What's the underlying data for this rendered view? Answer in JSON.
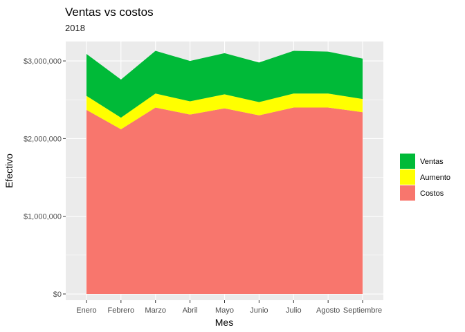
{
  "chart_data": {
    "type": "area",
    "stacked": true,
    "title": "Ventas vs costos",
    "subtitle": "2018",
    "xlabel": "Mes",
    "ylabel": "Efectivo",
    "categories": [
      "Enero",
      "Febrero",
      "Marzo",
      "Abril",
      "Mayo",
      "Junio",
      "Julio",
      "Agosto",
      "Septiembre"
    ],
    "ylim": [
      -80000,
      3250000
    ],
    "yticks": [
      0,
      1000000,
      2000000,
      3000000
    ],
    "ytick_labels": [
      "$0",
      "$1,000,000",
      "$2,000,000",
      "$3,000,000"
    ],
    "grid": true,
    "legend_position": "right",
    "series": [
      {
        "name": "Costos",
        "color": "#F8766D",
        "values": [
          2370000,
          2120000,
          2400000,
          2310000,
          2390000,
          2300000,
          2400000,
          2400000,
          2340000
        ]
      },
      {
        "name": "Aumento",
        "color": "#FFFF00",
        "values": [
          180000,
          150000,
          180000,
          170000,
          180000,
          170000,
          180000,
          180000,
          170000
        ]
      },
      {
        "name": "Ventas",
        "color": "#00BA38",
        "values": [
          540000,
          490000,
          550000,
          520000,
          530000,
          510000,
          550000,
          540000,
          520000
        ]
      }
    ],
    "legend_order": [
      "Ventas",
      "Aumento",
      "Costos"
    ]
  }
}
